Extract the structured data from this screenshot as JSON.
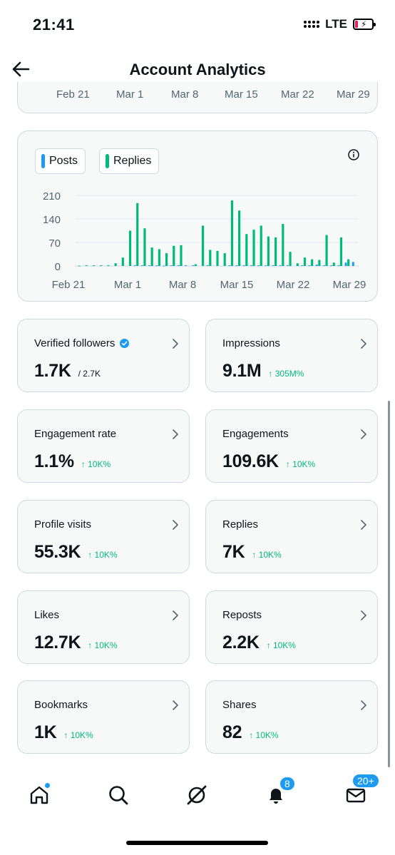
{
  "status_bar": {
    "time": "21:41",
    "network": "LTE"
  },
  "header": {
    "title": "Account Analytics"
  },
  "top_card": {
    "ticks": [
      "Feb 21",
      "Mar 1",
      "Mar 8",
      "Mar 15",
      "Mar 22",
      "Mar 29"
    ]
  },
  "chart": {
    "legend": [
      {
        "label": "Posts",
        "color": "#1d9bf0"
      },
      {
        "label": "Replies",
        "color": "#00ba7c"
      }
    ]
  },
  "chart_data": {
    "type": "bar",
    "x_tick_labels": [
      "Feb 21",
      "Mar 1",
      "Mar 8",
      "Mar 15",
      "Mar 22",
      "Mar 29"
    ],
    "y_ticks": [
      0,
      70,
      140,
      210
    ],
    "ylim": [
      0,
      210
    ],
    "grid": true,
    "legend_position": "top-left",
    "categories": [
      "Feb 21",
      "Feb 22",
      "Feb 23",
      "Feb 24",
      "Feb 25",
      "Feb 26",
      "Feb 27",
      "Feb 28",
      "Feb 29",
      "Mar 1",
      "Mar 2",
      "Mar 3",
      "Mar 4",
      "Mar 5",
      "Mar 6",
      "Mar 7",
      "Mar 8",
      "Mar 9",
      "Mar 10",
      "Mar 11",
      "Mar 12",
      "Mar 13",
      "Mar 14",
      "Mar 15",
      "Mar 16",
      "Mar 17",
      "Mar 18",
      "Mar 19",
      "Mar 20",
      "Mar 21",
      "Mar 22",
      "Mar 23",
      "Mar 24",
      "Mar 25",
      "Mar 26",
      "Mar 27",
      "Mar 28",
      "Mar 29",
      "Mar 30"
    ],
    "series": [
      {
        "name": "Posts",
        "color": "#1d9bf0",
        "values": [
          0,
          0,
          0,
          0,
          0,
          0,
          0,
          0,
          2,
          2,
          2,
          2,
          1,
          2,
          2,
          2,
          2,
          0,
          2,
          0,
          0,
          2,
          2,
          2,
          2,
          2,
          2,
          2,
          2,
          2,
          0,
          2,
          2,
          4,
          2,
          2,
          2,
          10,
          12
        ]
      },
      {
        "name": "Replies",
        "color": "#00ba7c",
        "values": [
          1,
          2,
          2,
          2,
          2,
          8,
          25,
          105,
          187,
          112,
          55,
          50,
          38,
          60,
          62,
          0,
          5,
          120,
          48,
          45,
          38,
          195,
          165,
          95,
          108,
          120,
          88,
          85,
          125,
          42,
          8,
          25,
          20,
          18,
          92,
          10,
          85,
          20,
          0
        ]
      }
    ]
  },
  "metrics": [
    {
      "label": "Verified followers",
      "value": "1.7K",
      "sub": "/ 2.7K",
      "change": "",
      "verified": true
    },
    {
      "label": "Impressions",
      "value": "9.1M",
      "sub": "",
      "change": "↑ 305M%"
    },
    {
      "label": "Engagement rate",
      "value": "1.1%",
      "sub": "",
      "change": "↑ 10K%"
    },
    {
      "label": "Engagements",
      "value": "109.6K",
      "sub": "",
      "change": "↑ 10K%"
    },
    {
      "label": "Profile visits",
      "value": "55.3K",
      "sub": "",
      "change": "↑ 10K%"
    },
    {
      "label": "Replies",
      "value": "7K",
      "sub": "",
      "change": "↑ 10K%"
    },
    {
      "label": "Likes",
      "value": "12.7K",
      "sub": "",
      "change": "↑ 10K%"
    },
    {
      "label": "Reposts",
      "value": "2.2K",
      "sub": "",
      "change": "↑ 10K%"
    },
    {
      "label": "Bookmarks",
      "value": "1K",
      "sub": "",
      "change": "↑ 10K%"
    },
    {
      "label": "Shares",
      "value": "82",
      "sub": "",
      "change": "↑ 10K%"
    }
  ],
  "bottom_nav": {
    "items": [
      "home",
      "search",
      "grok",
      "notifications",
      "messages"
    ],
    "notifications_badge": "8",
    "messages_badge": "20+"
  },
  "colors": {
    "accent": "#1d9bf0",
    "positive": "#00ba7c",
    "card_bg": "#f7f9f9",
    "border": "#cfd9de"
  }
}
